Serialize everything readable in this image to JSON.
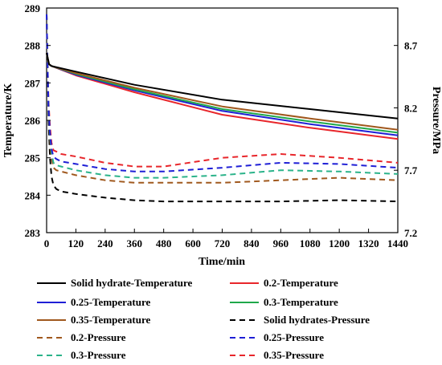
{
  "chart_data": {
    "type": "line",
    "xlabel": "Time/min",
    "ylabel_left": "Temperature/K",
    "ylabel_right": "Pressure/MPa",
    "xlim": [
      0,
      1440
    ],
    "ylim_left": [
      283,
      289
    ],
    "ylim_right": [
      7.2,
      9.0
    ],
    "x_ticks": [
      0,
      120,
      240,
      360,
      480,
      600,
      720,
      840,
      960,
      1080,
      1200,
      1320,
      1440
    ],
    "x_tick_labels": [
      "0",
      "120",
      "240",
      "360",
      "480",
      "600",
      "720",
      "840",
      "960",
      "1080",
      "1200",
      "1320",
      "1440"
    ],
    "y_left_ticks": [
      283,
      284,
      285,
      286,
      287,
      288,
      289
    ],
    "y_left_tick_labels": [
      "283",
      "284",
      "285",
      "286",
      "287",
      "288",
      "289"
    ],
    "y_right_ticks": [
      7.2,
      7.7,
      8.2,
      8.7
    ],
    "y_right_tick_labels": [
      "7.2",
      "7.7",
      "8.2",
      "8.7"
    ],
    "legend_placement": "bottom",
    "series": [
      {
        "name": "Solid hydrate-Temperature",
        "axis": "left",
        "style": "solid",
        "color": "#000000",
        "x": [
          0,
          10,
          20,
          120,
          360,
          720,
          1080,
          1440
        ],
        "y": [
          287.8,
          287.5,
          287.45,
          287.3,
          286.95,
          286.55,
          286.3,
          286.05
        ]
      },
      {
        "name": "0.2-Temperature",
        "axis": "left",
        "style": "solid",
        "color": "#e8262b",
        "x": [
          0,
          10,
          20,
          120,
          360,
          720,
          1080,
          1440
        ],
        "y": [
          287.8,
          287.5,
          287.45,
          287.2,
          286.75,
          286.15,
          285.8,
          285.5
        ]
      },
      {
        "name": "0.25-Temperature",
        "axis": "left",
        "style": "solid",
        "color": "#1f1fd6",
        "x": [
          0,
          10,
          20,
          120,
          360,
          720,
          1080,
          1440
        ],
        "y": [
          287.8,
          287.5,
          287.45,
          287.22,
          286.8,
          286.25,
          285.9,
          285.6
        ]
      },
      {
        "name": "0.3-Temperature",
        "axis": "left",
        "style": "solid",
        "color": "#1fa84a",
        "x": [
          0,
          10,
          20,
          120,
          360,
          720,
          1080,
          1440
        ],
        "y": [
          287.8,
          287.5,
          287.45,
          287.24,
          286.83,
          286.3,
          285.97,
          285.67
        ]
      },
      {
        "name": "0.35-Temperature",
        "axis": "left",
        "style": "solid",
        "color": "#a0581d",
        "x": [
          0,
          10,
          20,
          120,
          360,
          720,
          1080,
          1440
        ],
        "y": [
          287.8,
          287.5,
          287.45,
          287.26,
          286.87,
          286.37,
          286.05,
          285.75
        ]
      },
      {
        "name": "Solid hydrates-Pressure",
        "axis": "right",
        "style": "dashed",
        "color": "#000000",
        "x": [
          0,
          4,
          8,
          14,
          20,
          28,
          40,
          60,
          120,
          240,
          360,
          480,
          720,
          960,
          1200,
          1440
        ],
        "y": [
          8.95,
          8.55,
          8.1,
          7.8,
          7.65,
          7.58,
          7.55,
          7.53,
          7.51,
          7.48,
          7.46,
          7.45,
          7.45,
          7.45,
          7.46,
          7.45
        ]
      },
      {
        "name": "0.2-Pressure",
        "axis": "right",
        "style": "dashed",
        "color": "#a0581d",
        "x": [
          0,
          4,
          8,
          14,
          20,
          28,
          40,
          60,
          120,
          240,
          360,
          480,
          720,
          960,
          1200,
          1440
        ],
        "y": [
          8.95,
          8.55,
          8.2,
          7.95,
          7.8,
          7.72,
          7.7,
          7.69,
          7.66,
          7.62,
          7.6,
          7.6,
          7.6,
          7.62,
          7.64,
          7.62
        ]
      },
      {
        "name": "0.25-Pressure",
        "axis": "right",
        "style": "dashed",
        "color": "#1f1fd6",
        "x": [
          0,
          4,
          8,
          14,
          20,
          28,
          40,
          60,
          120,
          240,
          360,
          480,
          720,
          960,
          1200,
          1440
        ],
        "y": [
          8.95,
          8.55,
          8.2,
          8.0,
          7.87,
          7.81,
          7.79,
          7.77,
          7.75,
          7.71,
          7.69,
          7.69,
          7.72,
          7.76,
          7.75,
          7.72
        ]
      },
      {
        "name": "0.3-Pressure",
        "axis": "right",
        "style": "dashed",
        "color": "#2bb38a",
        "x": [
          0,
          4,
          8,
          14,
          20,
          28,
          40,
          60,
          120,
          240,
          360,
          480,
          720,
          960,
          1200,
          1440
        ],
        "y": [
          8.95,
          8.55,
          8.2,
          7.98,
          7.84,
          7.76,
          7.74,
          7.73,
          7.7,
          7.66,
          7.64,
          7.64,
          7.66,
          7.7,
          7.69,
          7.67
        ]
      },
      {
        "name": "0.35-Pressure",
        "axis": "right",
        "style": "dashed",
        "color": "#e8262b",
        "x": [
          0,
          4,
          8,
          14,
          20,
          28,
          40,
          60,
          120,
          240,
          360,
          480,
          720,
          960,
          1200,
          1440
        ],
        "y": [
          8.95,
          8.55,
          8.25,
          8.05,
          7.92,
          7.86,
          7.85,
          7.83,
          7.81,
          7.76,
          7.73,
          7.73,
          7.8,
          7.83,
          7.8,
          7.76
        ]
      }
    ]
  }
}
